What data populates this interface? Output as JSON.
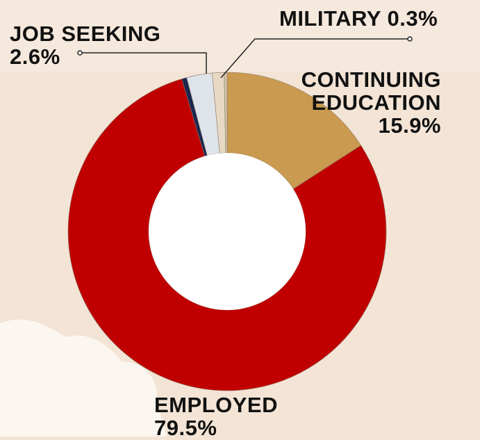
{
  "chart_data": {
    "type": "donut",
    "categories": [
      "CONTINUING EDUCATION",
      "EMPLOYED",
      null,
      "JOB SEEKING",
      null,
      "MILITARY"
    ],
    "values": [
      15.9,
      79.5,
      0.5,
      2.6,
      1.2,
      0.3
    ],
    "value_labels": [
      "15.9%",
      "79.5%",
      null,
      "2.6%",
      null,
      "0.3%"
    ],
    "colors": [
      "#c99a50",
      "#c00000",
      "#1a2750",
      "#dfe3ea",
      "#e8d9c4",
      "#d4c3a8"
    ]
  }
}
